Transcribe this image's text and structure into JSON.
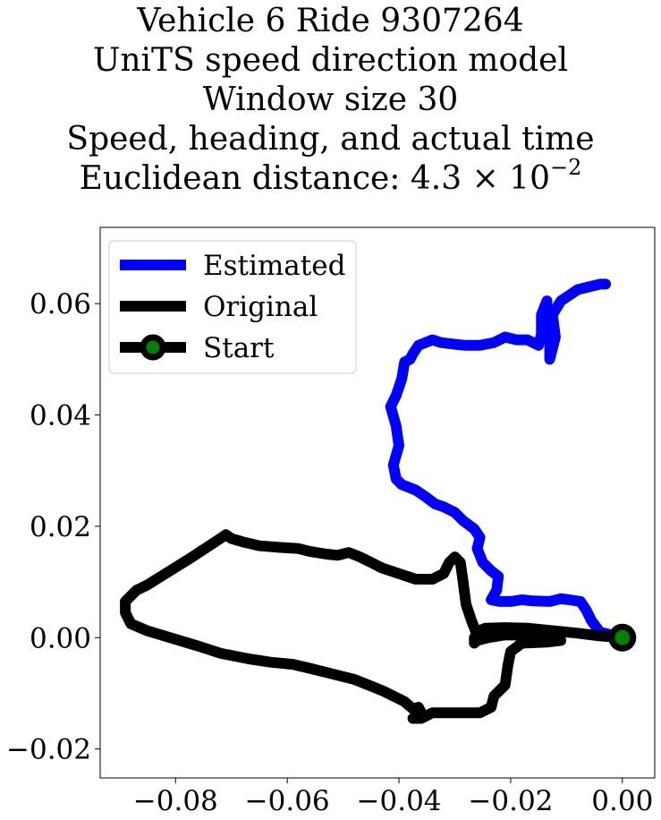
{
  "chart_data": {
    "type": "line",
    "title_lines": [
      "Vehicle 6 Ride 9307264",
      "UniTS speed direction model",
      "Window size 30",
      "Speed, heading, and actual time"
    ],
    "title_distance_prefix": "Euclidean distance: 4.3 × 10",
    "title_distance_exponent": "−2",
    "xlim": [
      -0.0935,
      0.0058
    ],
    "ylim": [
      -0.0252,
      0.0737
    ],
    "x_ticks": [
      -0.08,
      -0.06,
      -0.04,
      -0.02,
      0.0
    ],
    "x_tick_labels": [
      "−0.08",
      "−0.06",
      "−0.04",
      "−0.02",
      "0.00"
    ],
    "y_ticks": [
      -0.02,
      0.0,
      0.02,
      0.04,
      0.06
    ],
    "y_tick_labels": [
      "−0.02",
      "0.00",
      "0.02",
      "0.04",
      "0.06"
    ],
    "grid": false,
    "legend_position": "top-left",
    "legend": [
      {
        "label": "Estimated",
        "color": "#0000ff",
        "kind": "line"
      },
      {
        "label": "Original",
        "color": "#000000",
        "kind": "line"
      },
      {
        "label": "Start",
        "color": "#000000",
        "kind": "marker",
        "marker_color": "#008000"
      }
    ],
    "series": [
      {
        "name": "Estimated",
        "color": "#0000ff",
        "points": [
          [
            0.0,
            0.0
          ],
          [
            -0.004,
            0.001
          ],
          [
            -0.0055,
            0.003
          ],
          [
            -0.0065,
            0.005
          ],
          [
            -0.0075,
            0.0065
          ],
          [
            -0.0095,
            0.0068
          ],
          [
            -0.011,
            0.007
          ],
          [
            -0.013,
            0.0065
          ],
          [
            -0.016,
            0.0066
          ],
          [
            -0.018,
            0.0068
          ],
          [
            -0.02,
            0.0065
          ],
          [
            -0.022,
            0.0065
          ],
          [
            -0.0235,
            0.0068
          ],
          [
            -0.0225,
            0.0085
          ],
          [
            -0.0222,
            0.011
          ],
          [
            -0.0235,
            0.012
          ],
          [
            -0.025,
            0.0135
          ],
          [
            -0.026,
            0.016
          ],
          [
            -0.0255,
            0.018
          ],
          [
            -0.0265,
            0.0195
          ],
          [
            -0.0285,
            0.021
          ],
          [
            -0.03,
            0.0225
          ],
          [
            -0.032,
            0.0235
          ],
          [
            -0.0335,
            0.024
          ],
          [
            -0.0355,
            0.0255
          ],
          [
            -0.037,
            0.0265
          ],
          [
            -0.0395,
            0.0275
          ],
          [
            -0.0405,
            0.0285
          ],
          [
            -0.041,
            0.031
          ],
          [
            -0.04,
            0.0345
          ],
          [
            -0.0405,
            0.038
          ],
          [
            -0.0415,
            0.0415
          ],
          [
            -0.0405,
            0.0435
          ],
          [
            -0.0395,
            0.0465
          ],
          [
            -0.039,
            0.0495
          ],
          [
            -0.038,
            0.05
          ],
          [
            -0.0375,
            0.051
          ],
          [
            -0.0365,
            0.0525
          ],
          [
            -0.034,
            0.0535
          ],
          [
            -0.0325,
            0.053
          ],
          [
            -0.03,
            0.0527
          ],
          [
            -0.028,
            0.0525
          ],
          [
            -0.0255,
            0.0525
          ],
          [
            -0.023,
            0.053
          ],
          [
            -0.021,
            0.054
          ],
          [
            -0.019,
            0.0535
          ],
          [
            -0.017,
            0.0535
          ],
          [
            -0.015,
            0.0525
          ],
          [
            -0.0145,
            0.0545
          ],
          [
            -0.0145,
            0.058
          ],
          [
            -0.0135,
            0.0605
          ],
          [
            -0.0135,
            0.0575
          ],
          [
            -0.013,
            0.053
          ],
          [
            -0.013,
            0.05
          ],
          [
            -0.012,
            0.054
          ],
          [
            -0.0125,
            0.058
          ],
          [
            -0.011,
            0.0605
          ],
          [
            -0.0095,
            0.0615
          ],
          [
            -0.008,
            0.0625
          ],
          [
            -0.006,
            0.063
          ],
          [
            -0.004,
            0.0635
          ],
          [
            -0.003,
            0.0635
          ]
        ]
      },
      {
        "name": "Original",
        "color": "#000000",
        "points": [
          [
            0.0,
            0.0
          ],
          [
            -0.004,
            0.0003
          ],
          [
            -0.008,
            0.0008
          ],
          [
            -0.013,
            0.0013
          ],
          [
            -0.017,
            0.0017
          ],
          [
            -0.021,
            0.0018
          ],
          [
            -0.0245,
            0.0017
          ],
          [
            -0.0255,
            0.0013
          ],
          [
            -0.0265,
            0.0
          ],
          [
            -0.0265,
            -0.001
          ],
          [
            -0.026,
            -0.0005
          ],
          [
            -0.024,
            0.0
          ],
          [
            -0.021,
            0.0005
          ],
          [
            -0.016,
            0.0004
          ],
          [
            -0.013,
            0.0002
          ],
          [
            -0.011,
            -0.0005
          ],
          [
            -0.0135,
            -0.0008
          ],
          [
            -0.018,
            -0.001
          ],
          [
            -0.02,
            -0.0025
          ],
          [
            -0.0205,
            -0.005
          ],
          [
            -0.021,
            -0.0085
          ],
          [
            -0.023,
            -0.0105
          ],
          [
            -0.0235,
            -0.0125
          ],
          [
            -0.0255,
            -0.0135
          ],
          [
            -0.0285,
            -0.0135
          ],
          [
            -0.032,
            -0.0135
          ],
          [
            -0.034,
            -0.0135
          ],
          [
            -0.036,
            -0.0145
          ],
          [
            -0.0375,
            -0.0145
          ],
          [
            -0.036,
            -0.0135
          ],
          [
            -0.0365,
            -0.0125
          ],
          [
            -0.0375,
            -0.0128
          ],
          [
            -0.039,
            -0.0115
          ],
          [
            -0.043,
            -0.0095
          ],
          [
            -0.048,
            -0.0075
          ],
          [
            -0.052,
            -0.0065
          ],
          [
            -0.056,
            -0.0055
          ],
          [
            -0.059,
            -0.0048
          ],
          [
            -0.063,
            -0.0044
          ],
          [
            -0.067,
            -0.0038
          ],
          [
            -0.072,
            -0.0028
          ],
          [
            -0.076,
            -0.0015
          ],
          [
            -0.081,
            0.0
          ],
          [
            -0.085,
            0.0012
          ],
          [
            -0.088,
            0.0025
          ],
          [
            -0.089,
            0.0045
          ],
          [
            -0.089,
            0.0065
          ],
          [
            -0.087,
            0.0085
          ],
          [
            -0.085,
            0.0095
          ],
          [
            -0.081,
            0.012
          ],
          [
            -0.077,
            0.0145
          ],
          [
            -0.074,
            0.0165
          ],
          [
            -0.072,
            0.0178
          ],
          [
            -0.071,
            0.0185
          ],
          [
            -0.07,
            0.0178
          ],
          [
            -0.068,
            0.0172
          ],
          [
            -0.065,
            0.0165
          ],
          [
            -0.061,
            0.0162
          ],
          [
            -0.058,
            0.016
          ],
          [
            -0.056,
            0.0155
          ],
          [
            -0.053,
            0.015
          ],
          [
            -0.051,
            0.0148
          ],
          [
            -0.049,
            0.0153
          ],
          [
            -0.047,
            0.0145
          ],
          [
            -0.045,
            0.0135
          ],
          [
            -0.043,
            0.0125
          ],
          [
            -0.04,
            0.0115
          ],
          [
            -0.037,
            0.0105
          ],
          [
            -0.034,
            0.0105
          ],
          [
            -0.032,
            0.0115
          ],
          [
            -0.031,
            0.0135
          ],
          [
            -0.03,
            0.0145
          ],
          [
            -0.029,
            0.0135
          ],
          [
            -0.0285,
            0.01
          ],
          [
            -0.028,
            0.006
          ],
          [
            -0.027,
            0.003
          ],
          [
            -0.0262,
            0.001
          ],
          [
            -0.0258,
            -0.0003
          ]
        ]
      }
    ],
    "start_point": [
      0.0,
      0.0
    ]
  }
}
